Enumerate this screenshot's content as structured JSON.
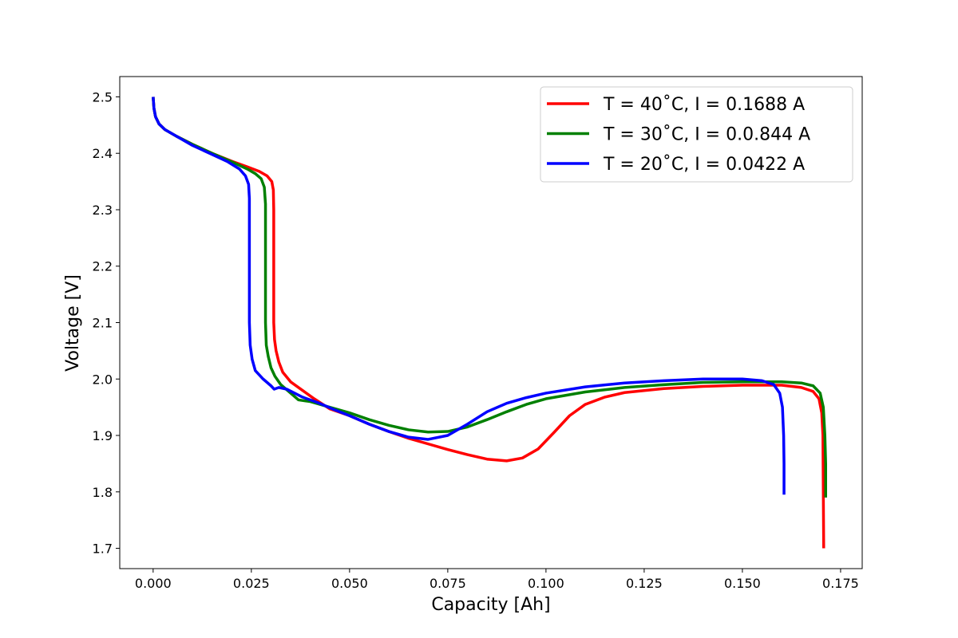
{
  "chart_data": {
    "type": "line",
    "xlabel": "Capacity [Ah]",
    "ylabel": "Voltage [V]",
    "xlim": [
      -0.0085,
      0.1805
    ],
    "ylim": [
      1.664,
      2.536
    ],
    "xticks": [
      0.0,
      0.025,
      0.05,
      0.075,
      0.1,
      0.125,
      0.15,
      0.175
    ],
    "xtick_labels": [
      "0.000",
      "0.025",
      "0.050",
      "0.075",
      "0.100",
      "0.125",
      "0.150",
      "0.175"
    ],
    "yticks": [
      1.7,
      1.8,
      1.9,
      2.0,
      2.1,
      2.2,
      2.3,
      2.4,
      2.5
    ],
    "ytick_labels": [
      "1.7",
      "1.8",
      "1.9",
      "2.0",
      "2.1",
      "2.2",
      "2.3",
      "2.4",
      "2.5"
    ],
    "grid": false,
    "legend_position": "top-right",
    "series": [
      {
        "name": "T = 40$^\\circ$C, I = 0.1688 A",
        "legend_label": "T = 40˚C, I = 0.1688 A",
        "color": "#ff0000",
        "points": [
          [
            0.0,
            2.5
          ],
          [
            0.0002,
            2.48
          ],
          [
            0.0006,
            2.465
          ],
          [
            0.0015,
            2.452
          ],
          [
            0.003,
            2.442
          ],
          [
            0.006,
            2.43
          ],
          [
            0.01,
            2.416
          ],
          [
            0.015,
            2.4
          ],
          [
            0.02,
            2.386
          ],
          [
            0.024,
            2.376
          ],
          [
            0.027,
            2.368
          ],
          [
            0.029,
            2.36
          ],
          [
            0.0302,
            2.35
          ],
          [
            0.0306,
            2.335
          ],
          [
            0.0307,
            2.3
          ],
          [
            0.0307,
            2.2
          ],
          [
            0.0307,
            2.1
          ],
          [
            0.0309,
            2.07
          ],
          [
            0.0313,
            2.05
          ],
          [
            0.032,
            2.03
          ],
          [
            0.033,
            2.012
          ],
          [
            0.035,
            1.995
          ],
          [
            0.038,
            1.98
          ],
          [
            0.041,
            1.965
          ],
          [
            0.045,
            1.947
          ],
          [
            0.05,
            1.935
          ],
          [
            0.055,
            1.92
          ],
          [
            0.06,
            1.907
          ],
          [
            0.065,
            1.895
          ],
          [
            0.07,
            1.885
          ],
          [
            0.075,
            1.875
          ],
          [
            0.08,
            1.866
          ],
          [
            0.085,
            1.858
          ],
          [
            0.09,
            1.855
          ],
          [
            0.094,
            1.86
          ],
          [
            0.098,
            1.876
          ],
          [
            0.102,
            1.905
          ],
          [
            0.106,
            1.935
          ],
          [
            0.11,
            1.955
          ],
          [
            0.115,
            1.968
          ],
          [
            0.12,
            1.976
          ],
          [
            0.13,
            1.983
          ],
          [
            0.14,
            1.987
          ],
          [
            0.15,
            1.989
          ],
          [
            0.16,
            1.989
          ],
          [
            0.165,
            1.985
          ],
          [
            0.168,
            1.978
          ],
          [
            0.1695,
            1.965
          ],
          [
            0.1702,
            1.94
          ],
          [
            0.1705,
            1.9
          ],
          [
            0.1706,
            1.8
          ],
          [
            0.1707,
            1.7
          ]
        ]
      },
      {
        "name": "T = 30$^\\circ$C, I = 0.0.844 A",
        "legend_label": "T = 30˚C, I = 0.0.844 A",
        "color": "#008000",
        "points": [
          [
            0.0,
            2.5
          ],
          [
            0.0002,
            2.48
          ],
          [
            0.0006,
            2.465
          ],
          [
            0.0015,
            2.452
          ],
          [
            0.003,
            2.442
          ],
          [
            0.006,
            2.43
          ],
          [
            0.01,
            2.416
          ],
          [
            0.015,
            2.4
          ],
          [
            0.02,
            2.385
          ],
          [
            0.024,
            2.372
          ],
          [
            0.026,
            2.364
          ],
          [
            0.0275,
            2.355
          ],
          [
            0.0283,
            2.34
          ],
          [
            0.0286,
            2.31
          ],
          [
            0.0286,
            2.2
          ],
          [
            0.0286,
            2.1
          ],
          [
            0.0288,
            2.06
          ],
          [
            0.0293,
            2.04
          ],
          [
            0.03,
            2.02
          ],
          [
            0.031,
            2.005
          ],
          [
            0.0325,
            1.99
          ],
          [
            0.035,
            1.975
          ],
          [
            0.037,
            1.963
          ],
          [
            0.04,
            1.96
          ],
          [
            0.045,
            1.95
          ],
          [
            0.05,
            1.94
          ],
          [
            0.055,
            1.928
          ],
          [
            0.06,
            1.918
          ],
          [
            0.065,
            1.91
          ],
          [
            0.07,
            1.906
          ],
          [
            0.075,
            1.907
          ],
          [
            0.08,
            1.915
          ],
          [
            0.085,
            1.928
          ],
          [
            0.09,
            1.942
          ],
          [
            0.095,
            1.955
          ],
          [
            0.1,
            1.965
          ],
          [
            0.11,
            1.977
          ],
          [
            0.12,
            1.985
          ],
          [
            0.13,
            1.99
          ],
          [
            0.14,
            1.994
          ],
          [
            0.15,
            1.995
          ],
          [
            0.16,
            1.995
          ],
          [
            0.165,
            1.993
          ],
          [
            0.168,
            1.988
          ],
          [
            0.1698,
            1.975
          ],
          [
            0.1706,
            1.95
          ],
          [
            0.171,
            1.9
          ],
          [
            0.1712,
            1.85
          ],
          [
            0.1712,
            1.79
          ]
        ]
      },
      {
        "name": "T = 20$^\\circ$C, I = 0.0422 A",
        "legend_label": "T = 20˚C, I = 0.0422 A",
        "color": "#0000ff",
        "points": [
          [
            0.0,
            2.5
          ],
          [
            0.0002,
            2.48
          ],
          [
            0.0006,
            2.465
          ],
          [
            0.0015,
            2.452
          ],
          [
            0.003,
            2.442
          ],
          [
            0.006,
            2.43
          ],
          [
            0.01,
            2.414
          ],
          [
            0.015,
            2.398
          ],
          [
            0.019,
            2.385
          ],
          [
            0.022,
            2.372
          ],
          [
            0.0235,
            2.36
          ],
          [
            0.0243,
            2.345
          ],
          [
            0.0245,
            2.32
          ],
          [
            0.0245,
            2.2
          ],
          [
            0.0245,
            2.1
          ],
          [
            0.0247,
            2.06
          ],
          [
            0.0252,
            2.035
          ],
          [
            0.026,
            2.015
          ],
          [
            0.028,
            2.0
          ],
          [
            0.03,
            1.988
          ],
          [
            0.0308,
            1.982
          ],
          [
            0.032,
            1.985
          ],
          [
            0.034,
            1.982
          ],
          [
            0.036,
            1.975
          ],
          [
            0.038,
            1.968
          ],
          [
            0.042,
            1.958
          ],
          [
            0.046,
            1.946
          ],
          [
            0.05,
            1.935
          ],
          [
            0.055,
            1.92
          ],
          [
            0.06,
            1.907
          ],
          [
            0.065,
            1.897
          ],
          [
            0.07,
            1.893
          ],
          [
            0.075,
            1.9
          ],
          [
            0.08,
            1.92
          ],
          [
            0.085,
            1.942
          ],
          [
            0.09,
            1.957
          ],
          [
            0.095,
            1.967
          ],
          [
            0.1,
            1.975
          ],
          [
            0.11,
            1.986
          ],
          [
            0.12,
            1.993
          ],
          [
            0.13,
            1.997
          ],
          [
            0.14,
            2.0
          ],
          [
            0.15,
            2.0
          ],
          [
            0.155,
            1.997
          ],
          [
            0.158,
            1.99
          ],
          [
            0.1595,
            1.975
          ],
          [
            0.1602,
            1.95
          ],
          [
            0.1605,
            1.9
          ],
          [
            0.1606,
            1.85
          ],
          [
            0.1606,
            1.795
          ]
        ]
      }
    ]
  }
}
